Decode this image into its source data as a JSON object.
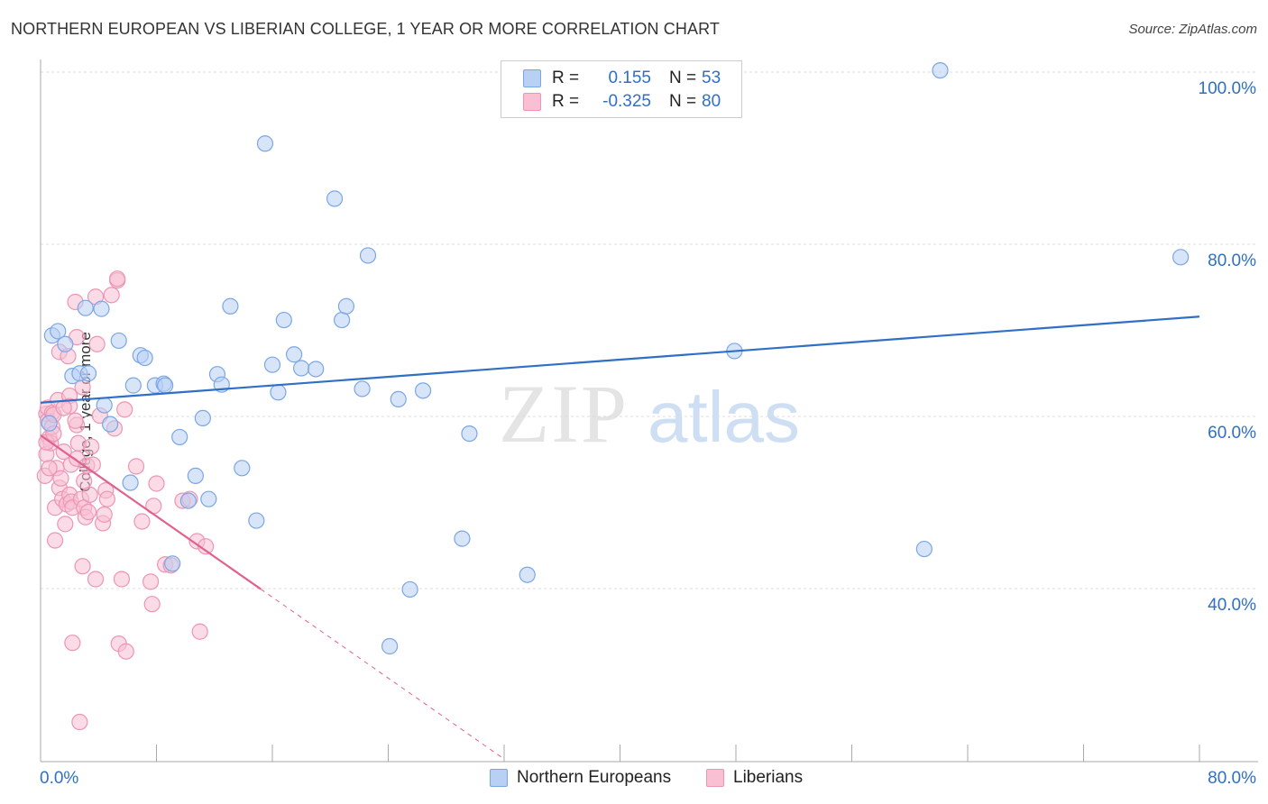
{
  "title": "NORTHERN EUROPEAN VS LIBERIAN COLLEGE, 1 YEAR OR MORE CORRELATION CHART",
  "source": "Source: ZipAtlas.com",
  "watermark": {
    "zip": "ZIP",
    "atlas": "atlas"
  },
  "colors": {
    "blue": "#2f6fc6",
    "blue_fill": "#b8d0f4",
    "blue_stroke": "#7aa6e6",
    "pink": "#e0608e",
    "pink_fill": "#f8c0d2",
    "pink_stroke": "#ee94b4",
    "grid": "#dddddd",
    "axis": "#aaaaaa"
  },
  "legend": {
    "rows": [
      {
        "r_label": "R =",
        "r_value": "0.155",
        "n_label": "N =",
        "n_value": "53"
      },
      {
        "r_label": "R =",
        "r_value": "-0.325",
        "n_label": "N =",
        "n_value": "80"
      }
    ]
  },
  "bottom_legend": {
    "series1": "Northern Europeans",
    "series2": "Liberians"
  },
  "chart_data": {
    "type": "scatter",
    "title": "NORTHERN EUROPEAN VS LIBERIAN COLLEGE, 1 YEAR OR MORE CORRELATION CHART",
    "xlabel": "",
    "ylabel": "College, 1 year or more",
    "xlim": [
      0,
      80
    ],
    "ylim": [
      20,
      102
    ],
    "x_tick_labels": {
      "min": "0.0%",
      "max": "80.0%"
    },
    "x_tick_count": 11,
    "y_ticks": [
      {
        "value": 100,
        "label": "100.0%"
      },
      {
        "value": 80,
        "label": "80.0%"
      },
      {
        "value": 60,
        "label": "60.0%"
      },
      {
        "value": 40,
        "label": "40.0%"
      }
    ],
    "series": [
      {
        "name": "Northern Europeans",
        "r": 0.155,
        "n": 53,
        "trend": {
          "x0": 0,
          "y0": 61.6,
          "x1": 80,
          "y1": 71.6,
          "solid_to": 80
        },
        "points": [
          [
            0.6,
            59.2
          ],
          [
            0.8,
            69.4
          ],
          [
            1.2,
            69.9
          ],
          [
            1.7,
            68.4
          ],
          [
            2.2,
            64.7
          ],
          [
            2.7,
            65.0
          ],
          [
            3.3,
            65.0
          ],
          [
            3.1,
            72.6
          ],
          [
            4.2,
            72.5
          ],
          [
            4.4,
            61.3
          ],
          [
            4.8,
            59.1
          ],
          [
            5.4,
            68.8
          ],
          [
            6.2,
            52.3
          ],
          [
            6.4,
            63.6
          ],
          [
            6.9,
            67.1
          ],
          [
            7.2,
            66.8
          ],
          [
            7.9,
            63.6
          ],
          [
            8.5,
            63.8
          ],
          [
            8.6,
            63.6
          ],
          [
            9.1,
            42.9
          ],
          [
            9.6,
            57.6
          ],
          [
            10.2,
            50.2
          ],
          [
            10.7,
            53.1
          ],
          [
            11.2,
            59.8
          ],
          [
            11.6,
            50.4
          ],
          [
            12.2,
            64.9
          ],
          [
            12.5,
            63.7
          ],
          [
            13.1,
            72.8
          ],
          [
            13.9,
            54.0
          ],
          [
            14.9,
            47.9
          ],
          [
            15.5,
            91.7
          ],
          [
            16.0,
            66.0
          ],
          [
            16.4,
            62.8
          ],
          [
            16.8,
            71.2
          ],
          [
            17.5,
            67.2
          ],
          [
            18.0,
            65.6
          ],
          [
            19.0,
            65.5
          ],
          [
            20.3,
            85.3
          ],
          [
            20.8,
            71.2
          ],
          [
            21.1,
            72.8
          ],
          [
            22.2,
            63.2
          ],
          [
            22.6,
            78.7
          ],
          [
            24.1,
            33.3
          ],
          [
            24.7,
            62.0
          ],
          [
            25.5,
            39.9
          ],
          [
            26.4,
            63.0
          ],
          [
            29.1,
            45.8
          ],
          [
            29.6,
            58.0
          ],
          [
            33.6,
            41.6
          ],
          [
            47.9,
            67.6
          ],
          [
            61.0,
            44.6
          ],
          [
            62.1,
            100.2
          ],
          [
            78.7,
            78.5
          ]
        ]
      },
      {
        "name": "Liberians",
        "r": -0.325,
        "n": 80,
        "trend": {
          "x0": 0,
          "y0": 57.8,
          "x1": 32,
          "y1": 20.2,
          "solid_to": 15.2
        },
        "points": [
          [
            0.3,
            53.1
          ],
          [
            0.4,
            55.6
          ],
          [
            0.4,
            60.3
          ],
          [
            0.5,
            59.5
          ],
          [
            0.5,
            61.0
          ],
          [
            0.6,
            57.5
          ],
          [
            0.7,
            56.9
          ],
          [
            0.8,
            60.4
          ],
          [
            0.8,
            58.8
          ],
          [
            0.9,
            60.2
          ],
          [
            1.0,
            45.6
          ],
          [
            1.0,
            49.4
          ],
          [
            1.1,
            54.0
          ],
          [
            1.2,
            61.9
          ],
          [
            1.3,
            51.7
          ],
          [
            1.3,
            67.5
          ],
          [
            1.4,
            52.8
          ],
          [
            1.5,
            50.4
          ],
          [
            1.6,
            55.9
          ],
          [
            1.7,
            47.5
          ],
          [
            1.8,
            49.8
          ],
          [
            1.9,
            67.0
          ],
          [
            2.0,
            50.9
          ],
          [
            2.0,
            62.4
          ],
          [
            2.0,
            61.2
          ],
          [
            2.1,
            50.1
          ],
          [
            2.1,
            54.4
          ],
          [
            2.2,
            49.4
          ],
          [
            2.2,
            33.7
          ],
          [
            2.4,
            73.3
          ],
          [
            2.5,
            69.2
          ],
          [
            2.5,
            59.0
          ],
          [
            2.5,
            55.1
          ],
          [
            2.6,
            56.9
          ],
          [
            2.7,
            24.5
          ],
          [
            2.8,
            50.4
          ],
          [
            2.9,
            42.6
          ],
          [
            2.9,
            63.4
          ],
          [
            3.0,
            52.5
          ],
          [
            3.0,
            49.4
          ],
          [
            3.1,
            48.3
          ],
          [
            3.2,
            54.3
          ],
          [
            3.3,
            48.9
          ],
          [
            3.4,
            50.9
          ],
          [
            3.5,
            56.5
          ],
          [
            3.6,
            54.4
          ],
          [
            3.8,
            41.1
          ],
          [
            3.8,
            73.9
          ],
          [
            3.9,
            68.4
          ],
          [
            4.1,
            60.1
          ],
          [
            4.3,
            47.6
          ],
          [
            4.4,
            48.6
          ],
          [
            4.5,
            51.4
          ],
          [
            4.6,
            50.4
          ],
          [
            4.9,
            74.1
          ],
          [
            5.1,
            58.6
          ],
          [
            5.3,
            75.8
          ],
          [
            5.3,
            76.0
          ],
          [
            5.4,
            33.6
          ],
          [
            5.6,
            41.1
          ],
          [
            5.8,
            60.8
          ],
          [
            5.9,
            32.7
          ],
          [
            6.6,
            54.2
          ],
          [
            7.0,
            47.8
          ],
          [
            7.6,
            40.8
          ],
          [
            7.7,
            38.2
          ],
          [
            7.8,
            49.6
          ],
          [
            8.0,
            52.2
          ],
          [
            8.6,
            42.8
          ],
          [
            9.0,
            42.7
          ],
          [
            9.8,
            50.2
          ],
          [
            10.3,
            50.4
          ],
          [
            10.8,
            45.5
          ],
          [
            11.0,
            35.0
          ],
          [
            11.4,
            44.9
          ],
          [
            0.4,
            57.0
          ],
          [
            0.9,
            58.0
          ],
          [
            1.6,
            61.0
          ],
          [
            2.4,
            59.5
          ],
          [
            0.6,
            54.0
          ]
        ]
      }
    ]
  }
}
